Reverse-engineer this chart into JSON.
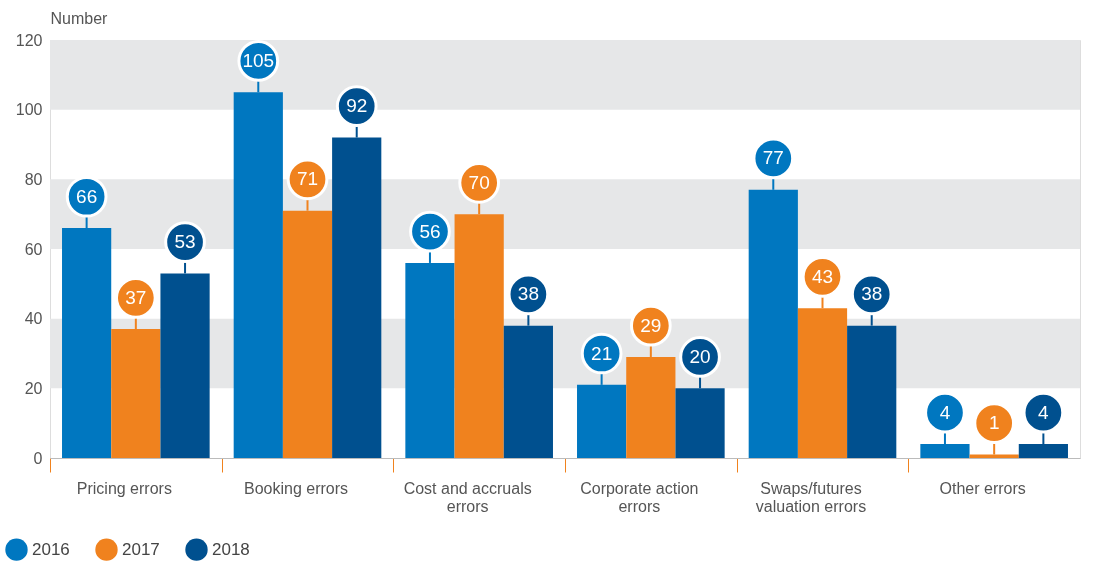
{
  "chart_data": {
    "type": "bar",
    "ylabel": "Number",
    "categories": [
      "Pricing errors",
      "Booking errors",
      "Cost and accruals errors",
      "Corporate action errors",
      "Swaps/futures valuation errors",
      "Other errors"
    ],
    "series": [
      {
        "name": "2016",
        "color": "#0077c0",
        "values": [
          66,
          105,
          56,
          21,
          77,
          4
        ]
      },
      {
        "name": "2017",
        "color": "#f0821e",
        "values": [
          37,
          71,
          70,
          29,
          43,
          1
        ]
      },
      {
        "name": "2018",
        "color": "#00508f",
        "values": [
          53,
          92,
          38,
          20,
          38,
          4
        ]
      }
    ],
    "ylim": [
      0,
      120
    ],
    "yticks": [
      0,
      20,
      40,
      60,
      80,
      100,
      120
    ],
    "bands": [
      {
        "axis": "y",
        "from": 20,
        "to": 40,
        "color": "#e6e7e8"
      },
      {
        "axis": "y",
        "from": 60,
        "to": 80,
        "color": "#e6e7e8"
      },
      {
        "axis": "y",
        "from": 100,
        "to": 120,
        "color": "#e6e7e8"
      }
    ],
    "data_labels": true,
    "legend": "bottom left"
  }
}
